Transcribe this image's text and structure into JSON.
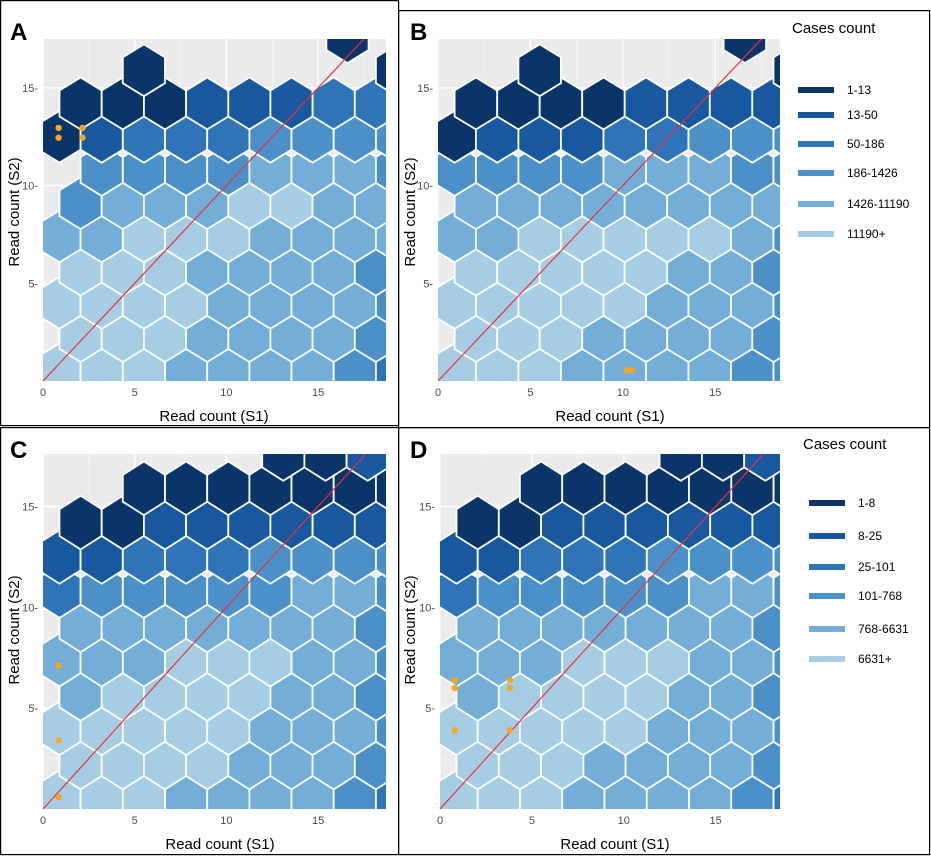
{
  "colors": {
    "bins": [
      "#0b3568",
      "#17589e",
      "#2e74b7",
      "#4b91c8",
      "#72aed8",
      "#a6cde3"
    ],
    "diagonal": "#e8303c",
    "points": "#f5a623",
    "panel_bg": "#ebebeb"
  },
  "chart_data": [
    {
      "panel": "A",
      "type": "hexbin",
      "xlabel": "Read count (S1)",
      "ylabel": "Read count (S2)",
      "x_ticks": [
        0,
        5,
        10,
        15
      ],
      "y_ticks": [
        5,
        10,
        15
      ],
      "xlim": [
        0,
        18.7
      ],
      "ylim": [
        0,
        17.5
      ],
      "diagonal": "y = x",
      "legend_title": "",
      "legend_labels": [],
      "hex_rows": [
        {
          "y": 0.6,
          "x0": 0.9,
          "classes": [
            5,
            5,
            5,
            4,
            4,
            4,
            4,
            3,
            2,
            1
          ]
        },
        {
          "y": 2.3,
          "x0": 2.05,
          "classes": [
            5,
            5,
            5,
            4,
            4,
            4,
            4,
            3,
            2,
            1,
            0
          ]
        },
        {
          "y": 4.0,
          "x0": 0.9,
          "classes": [
            5,
            5,
            5,
            5,
            4,
            4,
            4,
            4,
            3,
            3,
            2,
            1,
            0
          ]
        },
        {
          "y": 5.7,
          "x0": 2.05,
          "classes": [
            5,
            5,
            5,
            4,
            4,
            4,
            4,
            3,
            2,
            2,
            1,
            0
          ]
        },
        {
          "y": 7.4,
          "x0": 0.9,
          "classes": [
            4,
            4,
            5,
            5,
            5,
            4,
            4,
            4,
            4,
            3,
            2,
            1,
            0
          ]
        },
        {
          "y": 9.1,
          "x0": 2.05,
          "classes": [
            3,
            4,
            4,
            4,
            5,
            5,
            4,
            4,
            4,
            3,
            2,
            1
          ]
        },
        {
          "y": 10.8,
          "x0": 3.2,
          "classes": [
            3,
            3,
            3,
            3,
            4,
            4,
            4,
            3,
            3,
            2,
            1,
            0
          ]
        },
        {
          "y": 12.5,
          "x0": 0.9,
          "classes": [
            0,
            1,
            2,
            2,
            2,
            3,
            3,
            3,
            3,
            3,
            3,
            2,
            1,
            0
          ]
        },
        {
          "y": 14.2,
          "x0": 2.05,
          "classes": [
            0,
            0,
            0,
            1,
            1,
            1,
            2,
            2,
            2,
            1,
            0,
            0,
            0
          ]
        },
        {
          "y": 15.9,
          "x0": 5.5,
          "classes": [
            0,
            null,
            null,
            null,
            null,
            null,
            0,
            0,
            1,
            1,
            0
          ]
        },
        {
          "y": 17.6,
          "x0": 16.6,
          "classes": [
            0
          ]
        }
      ],
      "points": [
        {
          "x": 0.85,
          "y": 12.45
        },
        {
          "x": 0.85,
          "y": 12.95
        },
        {
          "x": 2.15,
          "y": 12.45
        },
        {
          "x": 2.15,
          "y": 12.95
        }
      ]
    },
    {
      "panel": "B",
      "type": "hexbin",
      "xlabel": "Read count (S1)",
      "ylabel": "Read count (S2)",
      "x_ticks": [
        0,
        5,
        10,
        15
      ],
      "y_ticks": [
        5,
        10,
        15
      ],
      "xlim": [
        0,
        18.5
      ],
      "ylim": [
        0,
        17.5
      ],
      "diagonal": "y = x",
      "legend_title": "Cases count",
      "legend_labels": [
        "1-13",
        "13-50",
        "50-186",
        "186-1426",
        "1426-11190",
        "11190+"
      ],
      "hex_rows": [
        {
          "y": 0.6,
          "x0": 0.9,
          "classes": [
            5,
            5,
            5,
            4,
            4,
            4,
            4,
            3,
            3,
            2,
            1
          ]
        },
        {
          "y": 2.3,
          "x0": 2.05,
          "classes": [
            5,
            5,
            5,
            4,
            4,
            4,
            4,
            3,
            2,
            1,
            0
          ]
        },
        {
          "y": 4.0,
          "x0": 0.9,
          "classes": [
            5,
            5,
            5,
            5,
            5,
            4,
            4,
            4,
            3,
            3,
            2,
            1,
            0
          ]
        },
        {
          "y": 5.7,
          "x0": 2.05,
          "classes": [
            5,
            5,
            5,
            5,
            5,
            4,
            4,
            3,
            2,
            1,
            0,
            0
          ]
        },
        {
          "y": 7.4,
          "x0": 0.9,
          "classes": [
            4,
            4,
            5,
            5,
            5,
            5,
            5,
            4,
            3,
            2,
            2,
            1,
            0
          ]
        },
        {
          "y": 9.1,
          "x0": 2.05,
          "classes": [
            4,
            4,
            4,
            4,
            4,
            4,
            4,
            4,
            3,
            2,
            1,
            0
          ]
        },
        {
          "y": 10.8,
          "x0": 0.9,
          "classes": [
            3,
            3,
            3,
            3,
            4,
            4,
            4,
            3,
            3,
            3,
            2,
            2,
            1,
            0
          ]
        },
        {
          "y": 12.5,
          "x0": 0.9,
          "classes": [
            0,
            1,
            1,
            1,
            2,
            2,
            3,
            3,
            3,
            3,
            2,
            2,
            1,
            0
          ]
        },
        {
          "y": 14.2,
          "x0": 2.05,
          "classes": [
            0,
            0,
            0,
            0,
            1,
            1,
            1,
            1,
            1,
            1,
            0,
            0,
            0,
            0
          ]
        },
        {
          "y": 15.9,
          "x0": 5.5,
          "classes": [
            0,
            null,
            null,
            null,
            null,
            null,
            0,
            0,
            1,
            1,
            0
          ]
        },
        {
          "y": 17.6,
          "x0": 16.6,
          "classes": [
            0
          ]
        }
      ],
      "points": [
        {
          "x": 10.2,
          "y": 0.55
        },
        {
          "x": 10.5,
          "y": 0.55
        }
      ]
    },
    {
      "panel": "C",
      "type": "hexbin",
      "xlabel": "Read count (S1)",
      "ylabel": "Read count (S2)",
      "x_ticks": [
        0,
        5,
        10,
        15
      ],
      "y_ticks": [
        5,
        10,
        15
      ],
      "xlim": [
        0,
        18.7
      ],
      "ylim": [
        0,
        17.6
      ],
      "diagonal": "y = x",
      "legend_title": "",
      "legend_labels": [],
      "hex_rows": [
        {
          "y": 0.6,
          "x0": 0.9,
          "classes": [
            5,
            5,
            5,
            4,
            4,
            4,
            4,
            3,
            2,
            1
          ]
        },
        {
          "y": 2.3,
          "x0": 2.05,
          "classes": [
            5,
            5,
            5,
            5,
            4,
            4,
            4,
            3,
            2,
            1,
            0
          ]
        },
        {
          "y": 4.0,
          "x0": 0.9,
          "classes": [
            5,
            5,
            5,
            5,
            5,
            4,
            4,
            4,
            3,
            2,
            1,
            0
          ]
        },
        {
          "y": 5.7,
          "x0": 2.05,
          "classes": [
            4,
            5,
            5,
            5,
            5,
            4,
            4,
            3,
            2,
            1,
            0,
            0
          ]
        },
        {
          "y": 7.4,
          "x0": 0.9,
          "classes": [
            4,
            4,
            4,
            5,
            5,
            5,
            4,
            4,
            3,
            2,
            1,
            1,
            0
          ]
        },
        {
          "y": 9.1,
          "x0": 2.05,
          "classes": [
            4,
            4,
            4,
            4,
            4,
            4,
            4,
            3,
            3,
            2,
            1,
            1
          ]
        },
        {
          "y": 10.8,
          "x0": 0.9,
          "classes": [
            2,
            3,
            3,
            3,
            3,
            3,
            4,
            4,
            3,
            3,
            2,
            1,
            1,
            0
          ]
        },
        {
          "y": 12.5,
          "x0": 0.9,
          "classes": [
            1,
            1,
            2,
            2,
            2,
            3,
            3,
            3,
            3,
            2,
            2,
            1,
            1,
            0
          ]
        },
        {
          "y": 14.2,
          "x0": 2.05,
          "classes": [
            0,
            0,
            1,
            1,
            1,
            1,
            1,
            1,
            1,
            1,
            1,
            1,
            0,
            0,
            0
          ]
        },
        {
          "y": 15.9,
          "x0": 5.5,
          "classes": [
            0,
            0,
            0,
            0,
            0,
            0,
            0,
            0,
            1,
            1,
            1
          ]
        },
        {
          "y": 17.6,
          "x0": 13.1,
          "classes": [
            0,
            0,
            1
          ]
        }
      ],
      "points": [
        {
          "x": 0.85,
          "y": 7.1
        },
        {
          "x": 0.85,
          "y": 3.4
        },
        {
          "x": 0.85,
          "y": 0.6
        }
      ]
    },
    {
      "panel": "D",
      "type": "hexbin",
      "xlabel": "Read count (S1)",
      "ylabel": "Read count (S2)",
      "x_ticks": [
        0,
        5,
        10,
        15
      ],
      "y_ticks": [
        5,
        10,
        15
      ],
      "xlim": [
        0,
        18.5
      ],
      "ylim": [
        0,
        17.6
      ],
      "diagonal": "y = x",
      "legend_title": "Cases count",
      "legend_labels": [
        "1-8",
        "8-25",
        "25-101",
        "101-768",
        "768-6631",
        "6631+"
      ],
      "hex_rows": [
        {
          "y": 0.6,
          "x0": 0.9,
          "classes": [
            5,
            5,
            5,
            4,
            4,
            4,
            4,
            3,
            2,
            1
          ]
        },
        {
          "y": 2.3,
          "x0": 2.05,
          "classes": [
            5,
            5,
            5,
            4,
            4,
            4,
            4,
            3,
            2,
            1,
            0
          ]
        },
        {
          "y": 4.0,
          "x0": 0.9,
          "classes": [
            5,
            5,
            5,
            5,
            5,
            4,
            4,
            4,
            3,
            2,
            1,
            0
          ]
        },
        {
          "y": 5.7,
          "x0": 2.05,
          "classes": [
            4,
            5,
            5,
            5,
            5,
            4,
            4,
            3,
            2,
            1,
            0,
            0
          ]
        },
        {
          "y": 7.4,
          "x0": 0.9,
          "classes": [
            4,
            4,
            4,
            5,
            5,
            5,
            4,
            4,
            3,
            2,
            1,
            1,
            0
          ]
        },
        {
          "y": 9.1,
          "x0": 2.05,
          "classes": [
            4,
            4,
            4,
            4,
            4,
            4,
            4,
            3,
            3,
            2,
            1,
            1
          ]
        },
        {
          "y": 10.8,
          "x0": 0.9,
          "classes": [
            2,
            3,
            3,
            3,
            3,
            3,
            4,
            4,
            3,
            3,
            2,
            1,
            1,
            0
          ]
        },
        {
          "y": 12.5,
          "x0": 0.9,
          "classes": [
            1,
            1,
            2,
            2,
            2,
            3,
            3,
            3,
            3,
            2,
            2,
            1,
            1,
            0
          ]
        },
        {
          "y": 14.2,
          "x0": 2.05,
          "classes": [
            0,
            0,
            1,
            1,
            1,
            1,
            1,
            1,
            1,
            1,
            1,
            1,
            0,
            0,
            0
          ]
        },
        {
          "y": 15.9,
          "x0": 5.5,
          "classes": [
            0,
            0,
            0,
            0,
            0,
            0,
            0,
            0,
            1,
            1,
            1
          ]
        },
        {
          "y": 17.6,
          "x0": 13.1,
          "classes": [
            0,
            0,
            1
          ]
        }
      ],
      "points": [
        {
          "x": 0.8,
          "y": 6.4
        },
        {
          "x": 0.8,
          "y": 6.0
        },
        {
          "x": 3.8,
          "y": 6.4
        },
        {
          "x": 3.8,
          "y": 6.0
        },
        {
          "x": 0.8,
          "y": 3.9
        },
        {
          "x": 3.8,
          "y": 3.9
        }
      ]
    }
  ]
}
